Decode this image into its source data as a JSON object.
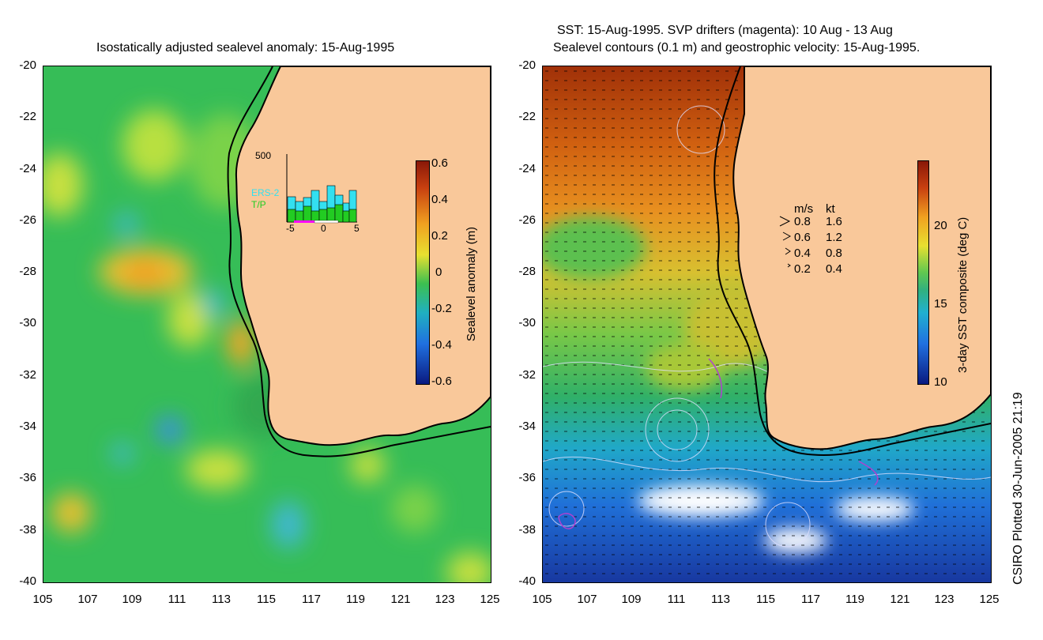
{
  "left_panel": {
    "title": "Isostatically adjusted sealevel anomaly: 15-Aug-1995",
    "colorbar_label": "Sealevel anomaly (m)",
    "colorbar_ticks": [
      "0.6",
      "0.4",
      "0.2",
      "0",
      "-0.2",
      "-0.4",
      "-0.6"
    ],
    "inset": {
      "ymax_label": "500",
      "series_labels": [
        "ERS-2",
        "T/P"
      ],
      "x_ticks": [
        "-5",
        "0",
        "5"
      ],
      "series_colors": {
        "ERS-2": "#33e0f0",
        "T/P": "#22cc22"
      }
    }
  },
  "right_panel": {
    "title_line1": "SST: 15-Aug-1995. SVP drifters (magenta): 10 Aug - 13 Aug",
    "title_line2": "Sealevel contours (0.1 m) and geostrophic velocity: 15-Aug-1995.",
    "colorbar_label": "3-day SST composite (deg C)",
    "colorbar_ticks": [
      "20",
      "15",
      "10"
    ],
    "velocity_legend": {
      "header_ms": "m/s",
      "header_kt": "kt",
      "rows": [
        {
          "ms": "0.8",
          "kt": "1.6"
        },
        {
          "ms": "0.6",
          "kt": "1.2"
        },
        {
          "ms": "0.4",
          "kt": "0.8"
        },
        {
          "ms": "0.2",
          "kt": "0.4"
        }
      ]
    }
  },
  "axes": {
    "y_ticks": [
      "-20",
      "-22",
      "-24",
      "-26",
      "-28",
      "-30",
      "-32",
      "-34",
      "-36",
      "-38",
      "-40"
    ],
    "x_ticks": [
      "105",
      "107",
      "109",
      "111",
      "113",
      "115",
      "117",
      "119",
      "121",
      "123",
      "125"
    ]
  },
  "credit": "CSIRO Plotted 30-Jun-2005 21:19",
  "colors": {
    "land": "#f9c89a",
    "ocean_green": "#2ebc52",
    "coast": "#000000"
  }
}
